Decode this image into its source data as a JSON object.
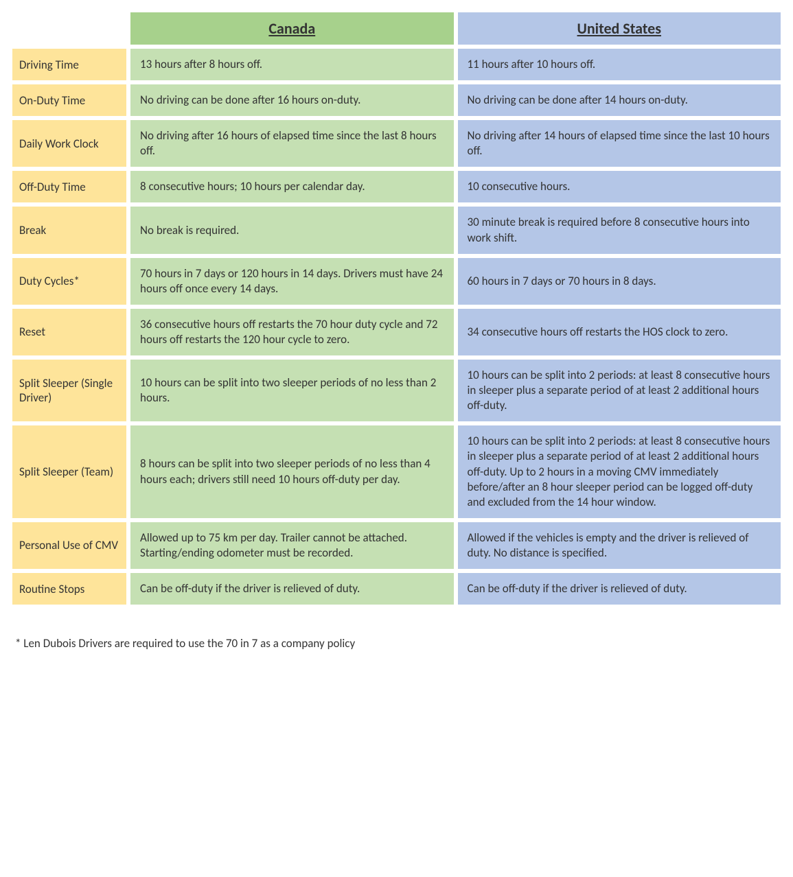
{
  "colors": {
    "label_bg": "#fee49a",
    "ca_header_bg": "#a7d18c",
    "ca_cell_bg": "#c5e0b3",
    "us_header_bg": "#b4c6e7",
    "us_cell_bg": "#b4c6e7",
    "text": "#333333"
  },
  "headers": {
    "canada": "Canada",
    "us": "United States"
  },
  "rows": [
    {
      "label": "Driving Time",
      "canada": "13 hours after 8 hours off.",
      "us": "11 hours after 10 hours off."
    },
    {
      "label": "On-Duty Time",
      "canada": "No driving can be done after 16 hours on-duty.",
      "us": "No driving can be done after 14 hours on-duty."
    },
    {
      "label": "Daily Work Clock",
      "canada": "No driving after 16 hours of elapsed time since the last 8 hours off.",
      "us": "No driving after 14 hours of elapsed time since the last 10 hours off."
    },
    {
      "label": "Off-Duty Time",
      "canada": "8 consecutive hours; 10 hours per calendar day.",
      "us": "10 consecutive hours."
    },
    {
      "label": "Break",
      "canada": "No break is required.",
      "us": "30 minute break is required before 8 consecutive hours into work shift."
    },
    {
      "label": "Duty Cycles*",
      "canada": "70 hours in 7 days or 120 hours in 14 days. Drivers must have 24 hours off once every 14 days.",
      "us": "60 hours in 7 days or 70 hours in 8 days."
    },
    {
      "label": "Reset",
      "canada": "36 consecutive hours off restarts the 70 hour duty cycle and 72 hours off restarts the 120 hour cycle to zero.",
      "us": "34 consecutive hours off restarts the HOS clock to zero."
    },
    {
      "label": "Split Sleeper (Single Driver)",
      "canada": "10 hours can be split into two sleeper periods of no less than 2 hours.",
      "us": "10 hours can be split into 2 periods: at least 8 consecutive hours in sleeper plus a separate period of at least 2 additional hours off-duty."
    },
    {
      "label": "Split Sleeper (Team)",
      "canada": "8 hours can be split into two sleeper periods of no less than 4 hours each; drivers still need 10 hours off-duty per day.",
      "us": "10 hours can be split into 2 periods: at least 8 consecutive hours in sleeper plus a separate period of at least 2 additional hours off-duty. Up to 2 hours in a moving CMV immediately before/after an 8 hour sleeper period can be logged off-duty and excluded from the 14 hour window."
    },
    {
      "label": "Personal Use of CMV",
      "canada": "Allowed up to 75 km per day. Trailer cannot be attached. Starting/ending odometer must be recorded.",
      "us": "Allowed if the vehicles is empty and the driver is relieved of duty. No distance is specified."
    },
    {
      "label": "Routine Stops",
      "canada": "Can be off-duty if the driver is relieved of duty.",
      "us": "Can be off-duty if the driver is relieved of duty."
    }
  ],
  "footnote": "* Len Dubois Drivers are required to use the 70 in 7 as a company policy"
}
